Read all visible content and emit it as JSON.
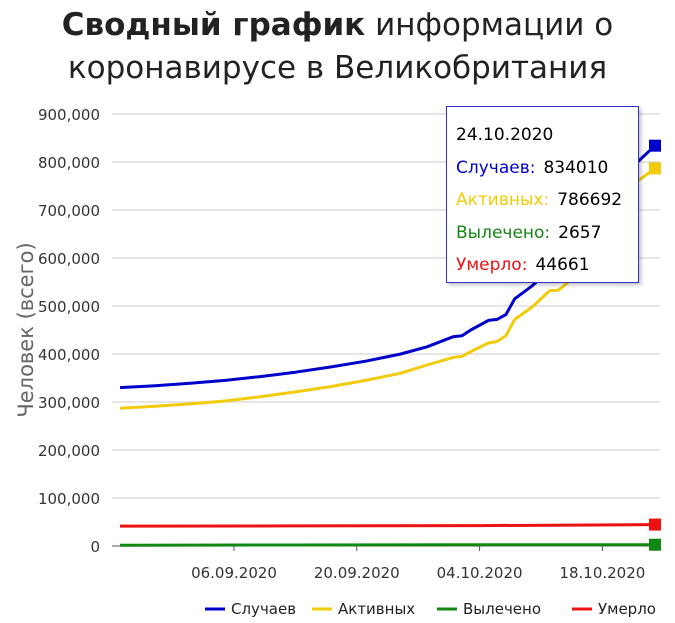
{
  "title": {
    "bold": "Сводный график",
    "rest_line1": "информации о",
    "line2": "коронавирусе в Великобритания"
  },
  "chart_data": {
    "type": "line",
    "ylabel": "Человек (всего)",
    "ylim": [
      0,
      900000
    ],
    "yticks": [
      "0",
      "100,000",
      "200,000",
      "300,000",
      "400,000",
      "500,000",
      "600,000",
      "700,000",
      "800,000",
      "900,000"
    ],
    "ytick_values": [
      0,
      100000,
      200000,
      300000,
      400000,
      500000,
      600000,
      700000,
      800000,
      900000
    ],
    "xlim": [
      "2020-08-24",
      "2020-10-24"
    ],
    "xticks": [
      {
        "label": "06.09.2020",
        "date": "2020-09-06"
      },
      {
        "label": "20.09.2020",
        "date": "2020-09-20"
      },
      {
        "label": "04.10.2020",
        "date": "2020-10-04"
      },
      {
        "label": "18.10.2020",
        "date": "2020-10-18"
      }
    ],
    "grid": true,
    "legend": "bottom-right",
    "series": [
      {
        "name": "Случаев",
        "color": "#0000cc",
        "points": [
          [
            "2020-08-24",
            330000
          ],
          [
            "2020-08-28",
            334000
          ],
          [
            "2020-09-01",
            339000
          ],
          [
            "2020-09-05",
            345000
          ],
          [
            "2020-09-09",
            353000
          ],
          [
            "2020-09-13",
            362000
          ],
          [
            "2020-09-17",
            373000
          ],
          [
            "2020-09-21",
            385000
          ],
          [
            "2020-09-25",
            400000
          ],
          [
            "2020-09-28",
            415000
          ],
          [
            "2020-10-01",
            436000
          ],
          [
            "2020-10-02",
            438000
          ],
          [
            "2020-10-03",
            450000
          ],
          [
            "2020-10-05",
            470000
          ],
          [
            "2020-10-06",
            472000
          ],
          [
            "2020-10-07",
            482000
          ],
          [
            "2020-10-08",
            515000
          ],
          [
            "2020-10-10",
            542000
          ],
          [
            "2020-10-12",
            575000
          ],
          [
            "2020-10-13",
            576000
          ],
          [
            "2020-10-14",
            590000
          ],
          [
            "2020-10-16",
            640000
          ],
          [
            "2020-10-18",
            690000
          ],
          [
            "2020-10-20",
            740000
          ],
          [
            "2020-10-22",
            800000
          ],
          [
            "2020-10-24",
            834010
          ]
        ]
      },
      {
        "name": "Активных",
        "color": "#f2cc0c",
        "points": [
          [
            "2020-08-24",
            287000
          ],
          [
            "2020-08-28",
            291000
          ],
          [
            "2020-09-01",
            296000
          ],
          [
            "2020-09-05",
            302000
          ],
          [
            "2020-09-09",
            311000
          ],
          [
            "2020-09-13",
            321000
          ],
          [
            "2020-09-17",
            332000
          ],
          [
            "2020-09-21",
            345000
          ],
          [
            "2020-09-25",
            360000
          ],
          [
            "2020-09-28",
            377000
          ],
          [
            "2020-10-01",
            393000
          ],
          [
            "2020-10-02",
            395000
          ],
          [
            "2020-10-03",
            405000
          ],
          [
            "2020-10-05",
            423000
          ],
          [
            "2020-10-06",
            426000
          ],
          [
            "2020-10-07",
            438000
          ],
          [
            "2020-10-08",
            472000
          ],
          [
            "2020-10-10",
            498000
          ],
          [
            "2020-10-12",
            532000
          ],
          [
            "2020-10-13",
            533000
          ],
          [
            "2020-10-14",
            548000
          ],
          [
            "2020-10-16",
            600000
          ],
          [
            "2020-10-18",
            650000
          ],
          [
            "2020-10-20",
            700000
          ],
          [
            "2020-10-22",
            760000
          ],
          [
            "2020-10-24",
            786692
          ]
        ]
      },
      {
        "name": "Вылечено",
        "color": "#118811",
        "points": [
          [
            "2020-08-24",
            1700
          ],
          [
            "2020-09-13",
            2000
          ],
          [
            "2020-10-04",
            2400
          ],
          [
            "2020-10-24",
            2657
          ]
        ]
      },
      {
        "name": "Умерло",
        "color": "#ee1111",
        "points": [
          [
            "2020-08-24",
            41500
          ],
          [
            "2020-09-13",
            41800
          ],
          [
            "2020-10-04",
            42400
          ],
          [
            "2020-10-24",
            44661
          ]
        ]
      }
    ]
  },
  "tooltip": {
    "date": "24.10.2020",
    "rows": [
      {
        "label": "Случаев:",
        "value": "834010",
        "color": "#0000cc"
      },
      {
        "label": "Активных:",
        "value": "786692",
        "color": "#f2cc0c"
      },
      {
        "label": "Вылечено:",
        "value": "2657",
        "color": "#118811"
      },
      {
        "label": "Умерло:",
        "value": "44661",
        "color": "#ee1111"
      }
    ]
  }
}
